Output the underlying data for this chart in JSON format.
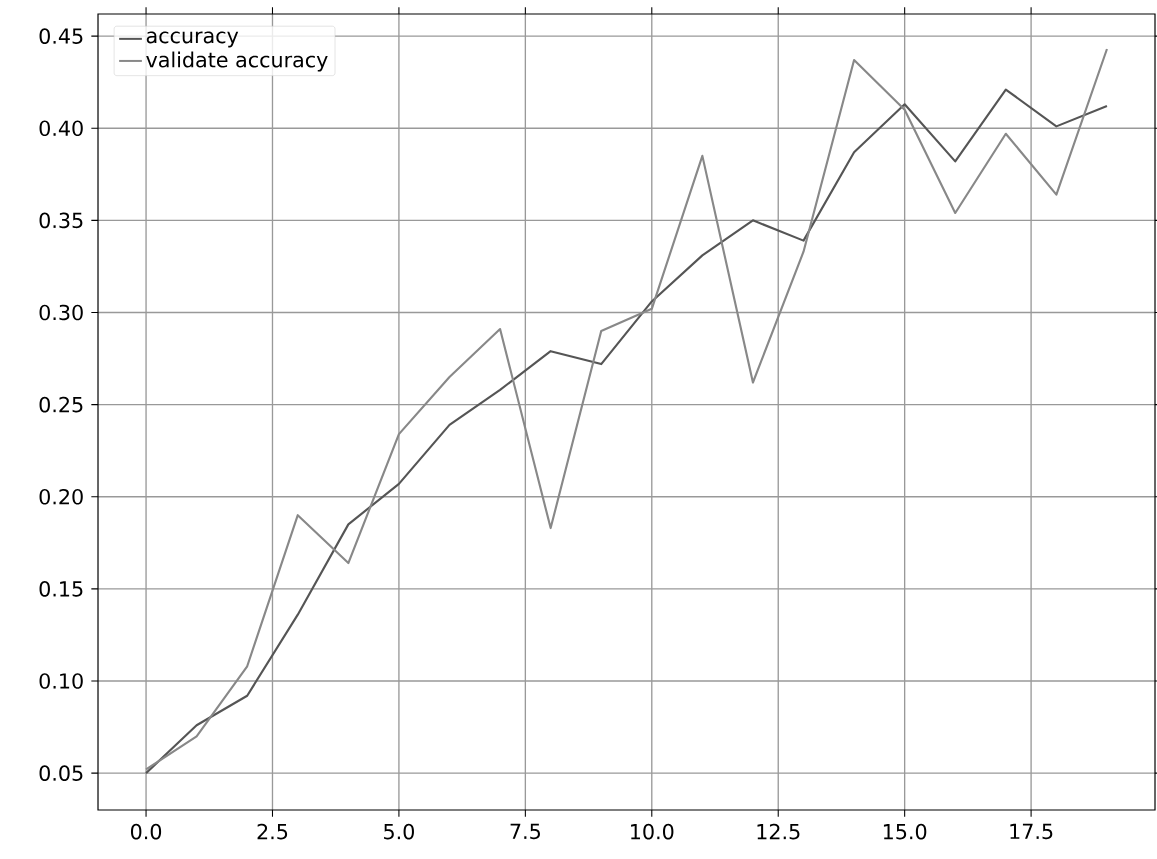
{
  "chart_data": {
    "type": "line",
    "x": [
      0,
      1,
      2,
      3,
      4,
      5,
      6,
      7,
      8,
      9,
      10,
      11,
      12,
      13,
      14,
      15,
      16,
      17,
      18,
      19
    ],
    "series": [
      {
        "name": "accuracy",
        "color": "#555555",
        "values": [
          0.05,
          0.076,
          0.092,
          0.136,
          0.185,
          0.207,
          0.239,
          0.258,
          0.279,
          0.272,
          0.306,
          0.331,
          0.35,
          0.339,
          0.387,
          0.413,
          0.382,
          0.421,
          0.401,
          0.412
        ]
      },
      {
        "name": "validate accuracy",
        "color": "#888888",
        "values": [
          0.052,
          0.07,
          0.108,
          0.19,
          0.164,
          0.234,
          0.265,
          0.291,
          0.183,
          0.29,
          0.302,
          0.385,
          0.262,
          0.333,
          0.437,
          0.41,
          0.354,
          0.397,
          0.364,
          0.443
        ]
      }
    ],
    "xlim": [
      -0.95,
      19.95
    ],
    "ylim": [
      0.03,
      0.462
    ],
    "xticks": [
      {
        "value": 0,
        "label": "0.0"
      },
      {
        "value": 2.5,
        "label": "2.5"
      },
      {
        "value": 5,
        "label": "5.0"
      },
      {
        "value": 7.5,
        "label": "7.5"
      },
      {
        "value": 10,
        "label": "10.0"
      },
      {
        "value": 12.5,
        "label": "12.5"
      },
      {
        "value": 15,
        "label": "15.0"
      },
      {
        "value": 17.5,
        "label": "17.5"
      }
    ],
    "yticks": [
      {
        "value": 0.05,
        "label": "0.05"
      },
      {
        "value": 0.1,
        "label": "0.10"
      },
      {
        "value": 0.15,
        "label": "0.15"
      },
      {
        "value": 0.2,
        "label": "0.20"
      },
      {
        "value": 0.25,
        "label": "0.25"
      },
      {
        "value": 0.3,
        "label": "0.30"
      },
      {
        "value": 0.35,
        "label": "0.35"
      },
      {
        "value": 0.4,
        "label": "0.40"
      },
      {
        "value": 0.45,
        "label": "0.45"
      }
    ],
    "grid": true,
    "legend": "top left",
    "marker": "none",
    "line_style": "solid"
  }
}
